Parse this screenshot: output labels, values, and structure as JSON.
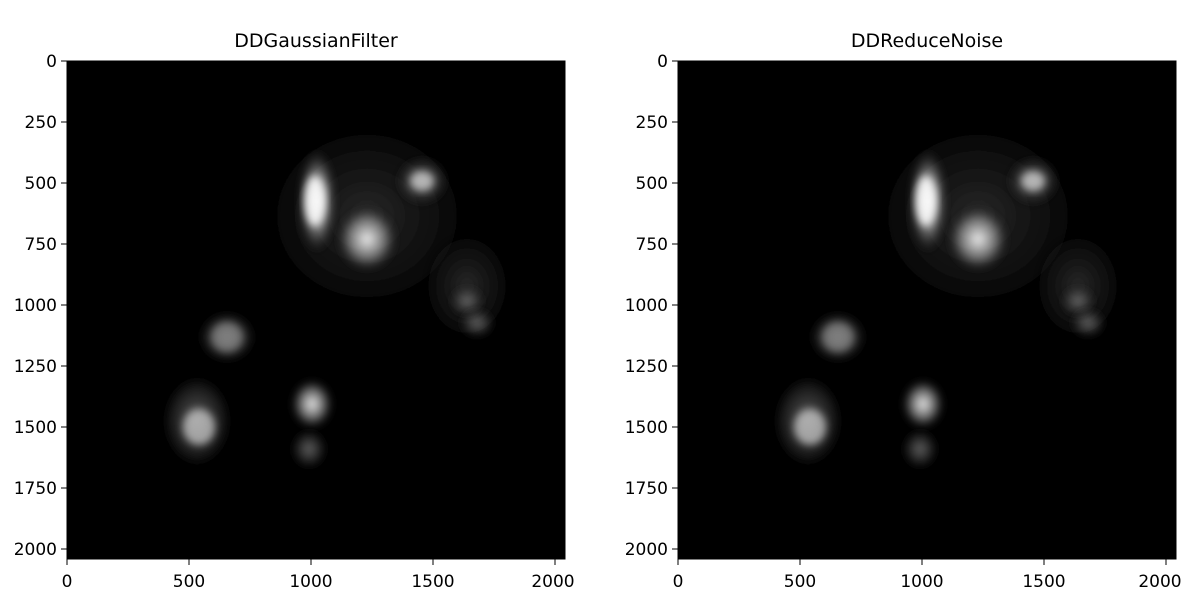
{
  "panels": [
    {
      "title": "DDGaussianFilter",
      "x_ticks": [
        "0",
        "500",
        "1000",
        "1500",
        "2000"
      ],
      "y_ticks": [
        "0",
        "250",
        "500",
        "750",
        "1000",
        "1250",
        "1500",
        "1750",
        "2000"
      ]
    },
    {
      "title": "DDReduceNoise",
      "x_ticks": [
        "0",
        "500",
        "1000",
        "1500",
        "2000"
      ],
      "y_ticks": [
        "0",
        "250",
        "500",
        "750",
        "1000",
        "1250",
        "1500",
        "1750",
        "2000"
      ]
    }
  ],
  "image": {
    "colormap": "grayscale",
    "background_color": "#000000",
    "content": "fluorescence microscopy cells"
  }
}
